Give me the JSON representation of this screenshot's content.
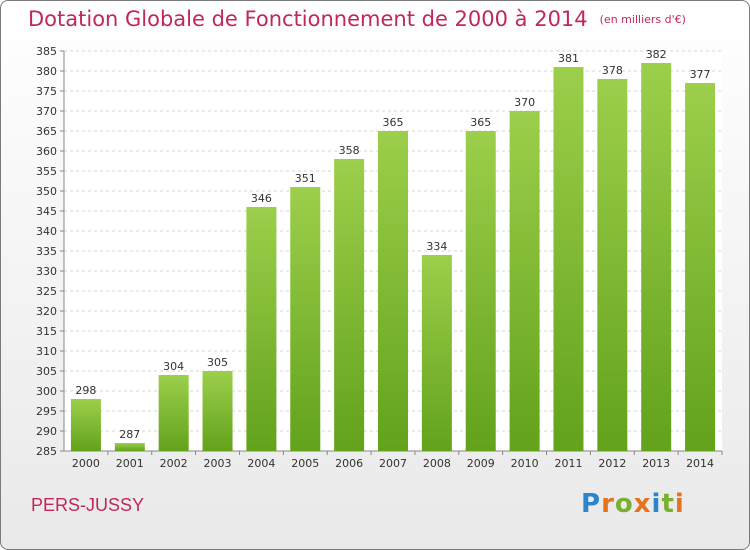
{
  "header": {
    "title": "Dotation Globale de Fonctionnement de 2000 à 2014",
    "unit": "(en milliers d'€)"
  },
  "footer": {
    "city": "PERS-JUSSY",
    "brand": "Proxiti"
  },
  "colors": {
    "bar_top": "#9ccf4b",
    "bar_bottom": "#63a21b",
    "title": "#c0285a"
  },
  "chart_data": {
    "type": "bar",
    "categories": [
      "2000",
      "2001",
      "2002",
      "2003",
      "2004",
      "2005",
      "2006",
      "2007",
      "2008",
      "2009",
      "2010",
      "2011",
      "2012",
      "2013",
      "2014"
    ],
    "values": [
      298,
      287,
      304,
      305,
      346,
      351,
      358,
      365,
      334,
      365,
      370,
      381,
      378,
      382,
      377
    ],
    "ylim": [
      285,
      385
    ],
    "yticks": [
      285,
      290,
      295,
      300,
      305,
      310,
      315,
      320,
      325,
      330,
      335,
      340,
      345,
      350,
      355,
      360,
      365,
      370,
      375,
      380,
      385
    ],
    "grid": true,
    "title": "Dotation Globale de Fonctionnement de 2000 à 2014",
    "xlabel": "",
    "ylabel": ""
  }
}
